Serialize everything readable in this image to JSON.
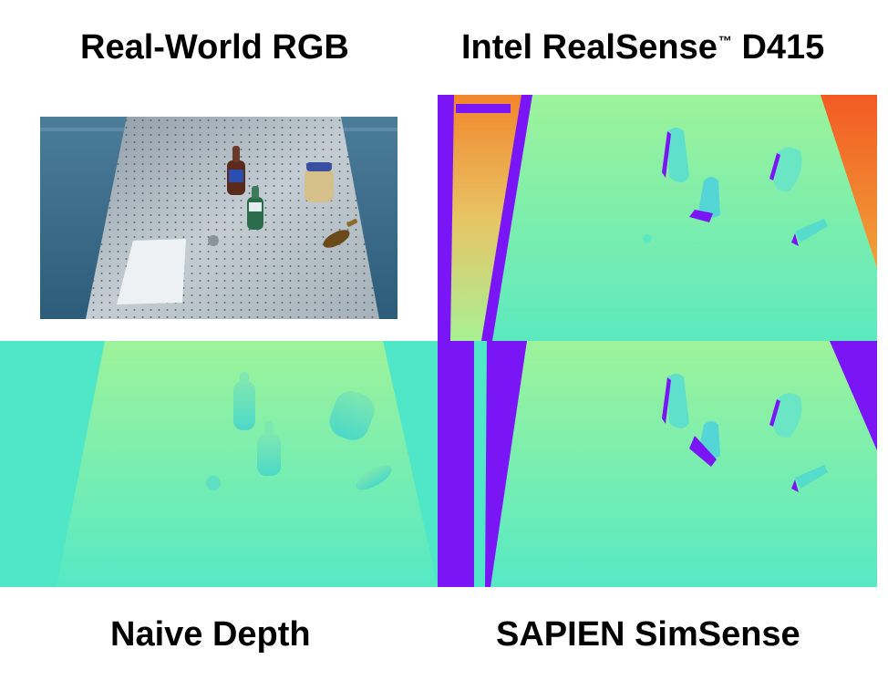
{
  "captions": {
    "top_left": "Real-World RGB",
    "top_right_main": "Intel RealSense",
    "top_right_mark": "™",
    "top_right_suffix": " D415",
    "bottom_left": "Naive Depth",
    "bottom_right": "SAPIEN SimSense"
  },
  "colors": {
    "depth_green": "#9ef39a",
    "depth_cyan": "#4fe7c7",
    "invalid_purple": "#7a16f5",
    "far_orange": "#f07a2a",
    "table_metal": "#b7c3cc",
    "background_blue": "#3f6f8f"
  }
}
